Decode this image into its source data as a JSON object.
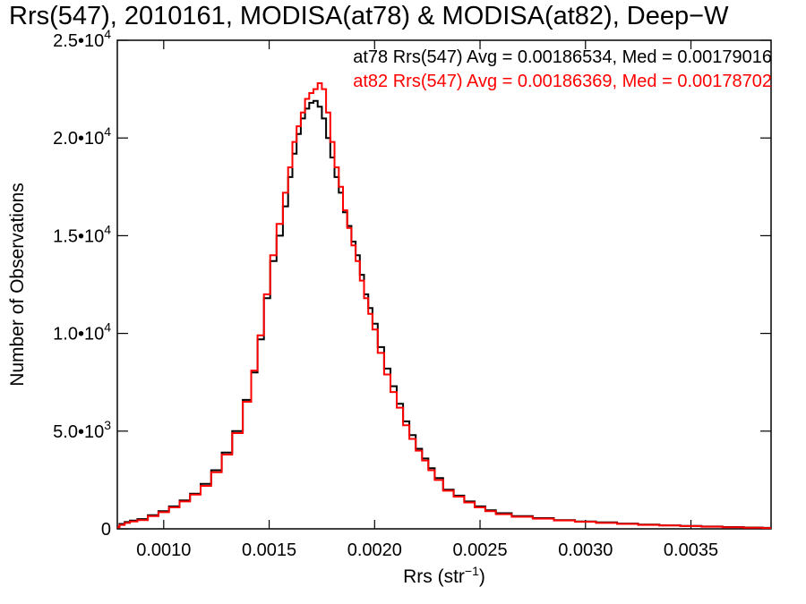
{
  "chart_data": {
    "type": "line",
    "title": "Rrs(547), 2010161, MODISA(at78) & MODISA(at82), Deep−W",
    "xlabel_main": "Rrs (str",
    "xlabel_sup": "−1",
    "xlabel_end": ")",
    "ylabel": "Number of Observations",
    "xlim": [
      0.00078,
      0.00388
    ],
    "ylim": [
      0,
      25000
    ],
    "x_ticks": [
      {
        "value": 0.001,
        "label": "0.0010"
      },
      {
        "value": 0.0015,
        "label": "0.0015"
      },
      {
        "value": 0.002,
        "label": "0.0020"
      },
      {
        "value": 0.0025,
        "label": "0.0025"
      },
      {
        "value": 0.003,
        "label": "0.0030"
      },
      {
        "value": 0.0035,
        "label": "0.0035"
      }
    ],
    "y_ticks": [
      {
        "value": 0,
        "mant": "0",
        "exp": ""
      },
      {
        "value": 5000,
        "mant": "5.0•10",
        "exp": "3"
      },
      {
        "value": 10000,
        "mant": "1.0•10",
        "exp": "4"
      },
      {
        "value": 15000,
        "mant": "1.5•10",
        "exp": "4"
      },
      {
        "value": 20000,
        "mant": "2.0•10",
        "exp": "4"
      },
      {
        "value": 25000,
        "mant": "2.5•10",
        "exp": "4"
      }
    ],
    "annotations": [
      {
        "text": "at78 Rrs(547) Avg = 0.00186534, Med = 0.00179016",
        "color": "#000000"
      },
      {
        "text": "at82 Rrs(547) Avg = 0.00186369, Med = 0.00178702",
        "color": "#ff0000"
      }
    ],
    "series": [
      {
        "color": "#000000",
        "x": [
          0.00078,
          0.0008,
          0.00083,
          0.00085,
          0.0009,
          0.00095,
          0.001,
          0.00105,
          0.0011,
          0.00115,
          0.0012,
          0.00125,
          0.0013,
          0.00135,
          0.0014,
          0.00143,
          0.00146,
          0.00149,
          0.00152,
          0.00155,
          0.00158,
          0.0016,
          0.00162,
          0.00164,
          0.00166,
          0.00168,
          0.0017,
          0.00172,
          0.00174,
          0.00176,
          0.00178,
          0.0018,
          0.00182,
          0.00184,
          0.00186,
          0.00188,
          0.0019,
          0.00192,
          0.00194,
          0.00196,
          0.00198,
          0.002,
          0.00203,
          0.00206,
          0.00209,
          0.00212,
          0.00215,
          0.00218,
          0.00221,
          0.00224,
          0.00227,
          0.0023,
          0.00235,
          0.0024,
          0.00245,
          0.0025,
          0.00255,
          0.0026,
          0.0027,
          0.0028,
          0.0029,
          0.003,
          0.0031,
          0.0032,
          0.0033,
          0.0034,
          0.0035,
          0.0036,
          0.0037,
          0.0038,
          0.00388
        ],
        "values": [
          100,
          250,
          350,
          420,
          500,
          700,
          900,
          1150,
          1450,
          1800,
          2300,
          3000,
          3900,
          5000,
          6600,
          8000,
          9700,
          11800,
          13700,
          15000,
          16500,
          18000,
          19200,
          20200,
          21000,
          21500,
          21800,
          21900,
          21600,
          21000,
          20000,
          19000,
          18000,
          17200,
          16200,
          15500,
          14700,
          14000,
          13000,
          12000,
          11300,
          10500,
          9300,
          8200,
          7300,
          6400,
          5500,
          4800,
          4100,
          3600,
          3100,
          2600,
          2000,
          1700,
          1400,
          1150,
          950,
          800,
          650,
          550,
          450,
          380,
          330,
          270,
          220,
          180,
          150,
          120,
          90,
          70,
          50
        ]
      },
      {
        "color": "#ff0000",
        "x": [
          0.00078,
          0.0008,
          0.00083,
          0.00085,
          0.0009,
          0.00095,
          0.001,
          0.00105,
          0.0011,
          0.00115,
          0.0012,
          0.00125,
          0.0013,
          0.00135,
          0.0014,
          0.00143,
          0.00146,
          0.00149,
          0.00152,
          0.00155,
          0.00158,
          0.0016,
          0.00162,
          0.00164,
          0.00166,
          0.00168,
          0.0017,
          0.00172,
          0.00174,
          0.00176,
          0.00178,
          0.0018,
          0.00182,
          0.00184,
          0.00186,
          0.00188,
          0.0019,
          0.00192,
          0.00194,
          0.00196,
          0.00198,
          0.002,
          0.00203,
          0.00206,
          0.00209,
          0.00212,
          0.00215,
          0.00218,
          0.00221,
          0.00224,
          0.00227,
          0.0023,
          0.00235,
          0.0024,
          0.00245,
          0.0025,
          0.00255,
          0.0026,
          0.0027,
          0.0028,
          0.0029,
          0.003,
          0.0031,
          0.0032,
          0.0033,
          0.0034,
          0.0035,
          0.0036,
          0.0037,
          0.0038,
          0.00388
        ],
        "values": [
          80,
          200,
          300,
          380,
          450,
          650,
          850,
          1100,
          1400,
          1750,
          2200,
          2900,
          3800,
          4900,
          6500,
          8100,
          9900,
          12000,
          14000,
          15600,
          17200,
          18500,
          19800,
          20600,
          21300,
          22000,
          22300,
          22500,
          22800,
          22500,
          21300,
          19800,
          18500,
          17500,
          16300,
          15400,
          14500,
          13700,
          12700,
          11800,
          11000,
          10200,
          9000,
          7900,
          7000,
          6200,
          5300,
          4600,
          4000,
          3500,
          3000,
          2500,
          1950,
          1650,
          1350,
          1100,
          900,
          750,
          620,
          520,
          430,
          360,
          300,
          250,
          200,
          170,
          140,
          110,
          80,
          60,
          40
        ]
      }
    ]
  }
}
